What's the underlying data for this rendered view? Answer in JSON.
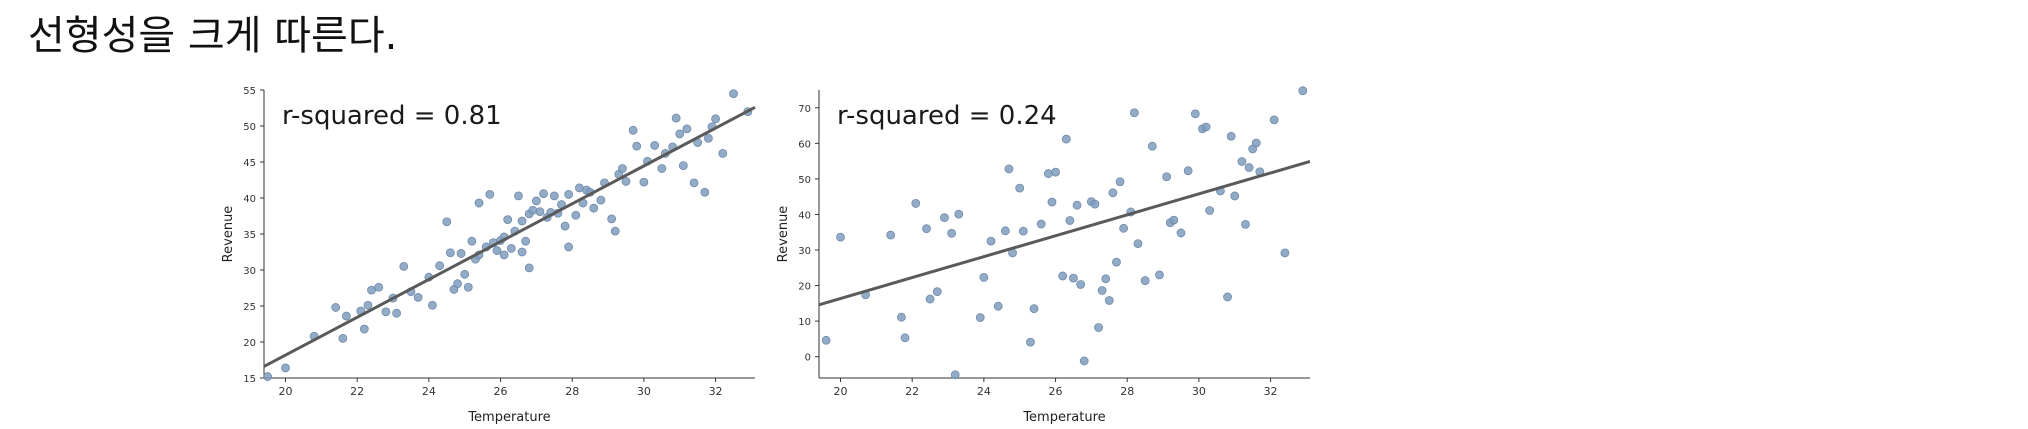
{
  "heading": "선형성을 크게 따른다.",
  "chart_data": [
    {
      "type": "scatter",
      "annotation": "r-squared = 0.81",
      "xlabel": "Temperature",
      "ylabel": "Revenue",
      "xlim": [
        19.4,
        33.1
      ],
      "ylim": [
        15,
        55
      ],
      "xticks": [
        20,
        22,
        24,
        26,
        28,
        30,
        32
      ],
      "yticks": [
        15,
        20,
        25,
        30,
        35,
        40,
        45,
        50,
        55
      ],
      "grid": false,
      "marker_color": "#7f9cbd",
      "line_color": "#5a5a5a",
      "trendline": [
        [
          19.4,
          16.6
        ],
        [
          33.1,
          52.6
        ]
      ],
      "points": [
        [
          19.5,
          15.2
        ],
        [
          20.0,
          16.4
        ],
        [
          20.8,
          20.8
        ],
        [
          21.4,
          24.8
        ],
        [
          21.6,
          20.5
        ],
        [
          21.7,
          23.6
        ],
        [
          22.1,
          24.3
        ],
        [
          22.2,
          21.8
        ],
        [
          22.3,
          25.1
        ],
        [
          22.4,
          27.2
        ],
        [
          22.6,
          27.6
        ],
        [
          22.8,
          24.2
        ],
        [
          23.0,
          26.1
        ],
        [
          23.1,
          24.0
        ],
        [
          23.3,
          30.5
        ],
        [
          23.5,
          27.0
        ],
        [
          23.7,
          26.2
        ],
        [
          24.0,
          29.0
        ],
        [
          24.1,
          25.1
        ],
        [
          24.3,
          30.6
        ],
        [
          24.5,
          36.7
        ],
        [
          24.6,
          32.4
        ],
        [
          24.7,
          27.3
        ],
        [
          24.8,
          28.1
        ],
        [
          24.9,
          32.3
        ],
        [
          25.0,
          29.4
        ],
        [
          25.1,
          27.6
        ],
        [
          25.2,
          34.0
        ],
        [
          25.3,
          31.5
        ],
        [
          25.4,
          32.1
        ],
        [
          25.4,
          39.3
        ],
        [
          25.6,
          33.2
        ],
        [
          25.7,
          40.5
        ],
        [
          25.8,
          33.8
        ],
        [
          25.9,
          32.7
        ],
        [
          26.0,
          34.1
        ],
        [
          26.1,
          32.1
        ],
        [
          26.1,
          34.6
        ],
        [
          26.2,
          37.0
        ],
        [
          26.3,
          33.0
        ],
        [
          26.4,
          35.4
        ],
        [
          26.5,
          40.3
        ],
        [
          26.6,
          36.8
        ],
        [
          26.6,
          32.5
        ],
        [
          26.7,
          34.0
        ],
        [
          26.8,
          30.3
        ],
        [
          26.8,
          37.8
        ],
        [
          26.9,
          38.3
        ],
        [
          27.0,
          39.6
        ],
        [
          27.1,
          38.1
        ],
        [
          27.2,
          40.6
        ],
        [
          27.3,
          37.3
        ],
        [
          27.4,
          38.0
        ],
        [
          27.5,
          40.3
        ],
        [
          27.6,
          37.9
        ],
        [
          27.7,
          39.1
        ],
        [
          27.8,
          36.1
        ],
        [
          27.9,
          33.2
        ],
        [
          27.9,
          40.5
        ],
        [
          28.1,
          37.6
        ],
        [
          28.2,
          41.4
        ],
        [
          28.3,
          39.3
        ],
        [
          28.4,
          41.1
        ],
        [
          28.5,
          40.8
        ],
        [
          28.6,
          38.6
        ],
        [
          28.8,
          39.7
        ],
        [
          28.9,
          42.1
        ],
        [
          29.1,
          37.1
        ],
        [
          29.2,
          35.4
        ],
        [
          29.3,
          43.3
        ],
        [
          29.4,
          44.1
        ],
        [
          29.5,
          42.3
        ],
        [
          29.7,
          49.4
        ],
        [
          29.8,
          47.2
        ],
        [
          30.0,
          42.2
        ],
        [
          30.1,
          45.1
        ],
        [
          30.3,
          47.3
        ],
        [
          30.5,
          44.1
        ],
        [
          30.6,
          46.2
        ],
        [
          30.8,
          47.1
        ],
        [
          30.9,
          51.1
        ],
        [
          31.0,
          48.9
        ],
        [
          31.1,
          44.5
        ],
        [
          31.2,
          49.6
        ],
        [
          31.4,
          42.1
        ],
        [
          31.5,
          47.7
        ],
        [
          31.7,
          40.8
        ],
        [
          31.8,
          48.3
        ],
        [
          31.9,
          49.9
        ],
        [
          32.0,
          51.0
        ],
        [
          32.2,
          46.2
        ],
        [
          32.5,
          54.5
        ],
        [
          32.9,
          52.0
        ]
      ]
    },
    {
      "type": "scatter",
      "annotation": "r-squared = 0.24",
      "xlabel": "Temperature",
      "ylabel": "Revenue",
      "xlim": [
        19.4,
        33.1
      ],
      "ylim": [
        -6,
        75
      ],
      "xticks": [
        20,
        22,
        24,
        26,
        28,
        30,
        32
      ],
      "yticks": [
        0,
        10,
        20,
        30,
        40,
        50,
        60,
        70
      ],
      "grid": false,
      "marker_color": "#7f9cbd",
      "line_color": "#5a5a5a",
      "trendline": [
        [
          19.4,
          14.6
        ],
        [
          33.1,
          54.9
        ]
      ],
      "points": [
        [
          19.6,
          4.6
        ],
        [
          20.0,
          33.6
        ],
        [
          20.7,
          17.4
        ],
        [
          21.4,
          34.2
        ],
        [
          21.7,
          11.1
        ],
        [
          21.8,
          5.3
        ],
        [
          22.1,
          43.1
        ],
        [
          22.4,
          36.0
        ],
        [
          22.5,
          16.2
        ],
        [
          22.7,
          18.3
        ],
        [
          22.9,
          39.1
        ],
        [
          23.1,
          34.7
        ],
        [
          23.2,
          -5.1
        ],
        [
          23.3,
          40.1
        ],
        [
          23.9,
          11.0
        ],
        [
          24.0,
          22.3
        ],
        [
          24.2,
          32.5
        ],
        [
          24.4,
          14.2
        ],
        [
          24.6,
          35.4
        ],
        [
          24.7,
          52.8
        ],
        [
          24.8,
          29.2
        ],
        [
          25.0,
          47.4
        ],
        [
          25.1,
          35.3
        ],
        [
          25.3,
          4.1
        ],
        [
          25.4,
          13.5
        ],
        [
          25.6,
          37.3
        ],
        [
          25.8,
          51.5
        ],
        [
          25.9,
          43.5
        ],
        [
          26.0,
          51.9
        ],
        [
          26.2,
          22.7
        ],
        [
          26.3,
          61.2
        ],
        [
          26.4,
          38.3
        ],
        [
          26.5,
          22.1
        ],
        [
          26.6,
          42.6
        ],
        [
          26.7,
          20.3
        ],
        [
          26.8,
          -1.2
        ],
        [
          27.0,
          43.6
        ],
        [
          27.1,
          42.9
        ],
        [
          27.2,
          8.2
        ],
        [
          27.3,
          18.6
        ],
        [
          27.4,
          21.9
        ],
        [
          27.5,
          15.8
        ],
        [
          27.6,
          46.1
        ],
        [
          27.7,
          26.6
        ],
        [
          27.8,
          49.2
        ],
        [
          27.9,
          36.1
        ],
        [
          28.1,
          40.7
        ],
        [
          28.2,
          68.6
        ],
        [
          28.3,
          31.8
        ],
        [
          28.5,
          21.4
        ],
        [
          28.7,
          59.2
        ],
        [
          28.9,
          23.0
        ],
        [
          29.1,
          50.6
        ],
        [
          29.2,
          37.7
        ],
        [
          29.3,
          38.4
        ],
        [
          29.5,
          34.8
        ],
        [
          29.7,
          52.3
        ],
        [
          29.9,
          68.3
        ],
        [
          30.1,
          64.1
        ],
        [
          30.2,
          64.6
        ],
        [
          30.3,
          41.1
        ],
        [
          30.6,
          46.6
        ],
        [
          30.8,
          16.8
        ],
        [
          30.9,
          62.0
        ],
        [
          31.0,
          45.2
        ],
        [
          31.2,
          54.9
        ],
        [
          31.3,
          37.2
        ],
        [
          31.4,
          53.2
        ],
        [
          31.5,
          58.4
        ],
        [
          31.6,
          60.1
        ],
        [
          31.7,
          52.0
        ],
        [
          32.1,
          66.6
        ],
        [
          32.4,
          29.2
        ],
        [
          32.9,
          74.8
        ]
      ]
    }
  ]
}
